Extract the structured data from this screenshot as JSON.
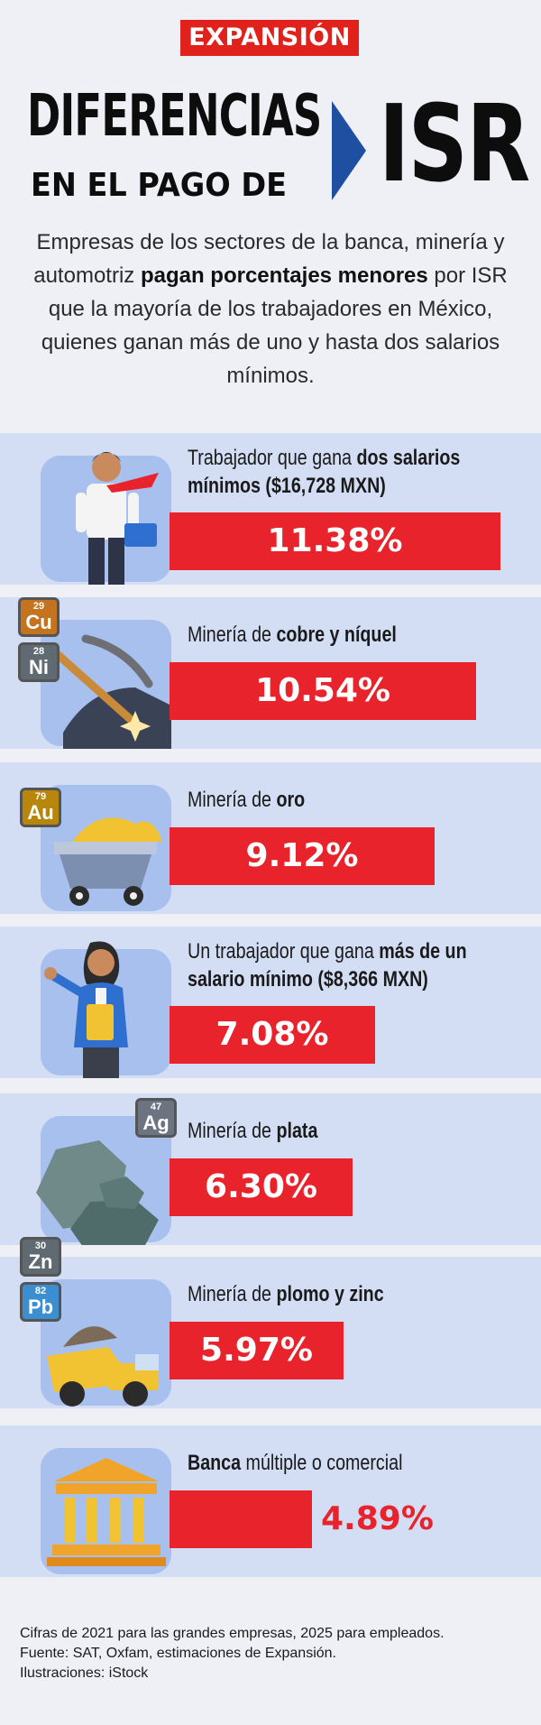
{
  "brand": "EXPANSIÓN",
  "title": {
    "line1": "DIFERENCIAS",
    "line2": "EN EL PAGO DE",
    "big": "ISR"
  },
  "intro": {
    "part1": "Empresas de los sectores de la banca, minería y automotriz ",
    "bold": "pagan porcentajes menores",
    "part2": " por ISR que la mayoría de los trabajadores en México, quienes ganan más de uno y hasta dos salarios mínimos."
  },
  "chart_data": {
    "type": "bar",
    "categories": [
      "Trabajador que gana dos salarios mínimos ($16,728 MXN)",
      "Minería de cobre y níquel",
      "Minería de oro",
      "Un trabajador que gana más de un salario mínimo ($8,366 MXN)",
      "Minería de plata",
      "Minería de plomo y zinc",
      "Banca múltiple o comercial"
    ],
    "values": [
      11.38,
      10.54,
      9.12,
      7.08,
      6.3,
      5.97,
      4.89
    ],
    "value_labels": [
      "11.38%",
      "10.54%",
      "9.12%",
      "7.08%",
      "6.30%",
      "5.97%",
      "4.89%"
    ],
    "xlim": [
      0,
      11.38
    ],
    "bar_color": "#e8232b"
  },
  "rows": [
    {
      "plain1": "Trabajador que gana ",
      "bold": "dos salarios mínimos ($16,728 MXN)",
      "plain2": "",
      "icon": "businessman-icon"
    },
    {
      "plain1": "Minería de ",
      "bold": "cobre y níquel",
      "plain2": "",
      "icon": "pickaxe-icon",
      "badges": [
        {
          "num": "29",
          "sym": "Cu"
        },
        {
          "num": "28",
          "sym": "Ni"
        }
      ]
    },
    {
      "plain1": "Minería de ",
      "bold": "oro",
      "plain2": "",
      "icon": "gold-cart-icon",
      "badges": [
        {
          "num": "79",
          "sym": "Au"
        }
      ]
    },
    {
      "plain1": "Un trabajador que gana ",
      "bold": "más de un salario mínimo ($8,366 MXN)",
      "plain2": "",
      "icon": "woman-worker-icon"
    },
    {
      "plain1": "Minería de ",
      "bold": "plata",
      "plain2": "",
      "icon": "rocks-icon",
      "badges": [
        {
          "num": "47",
          "sym": "Ag"
        }
      ]
    },
    {
      "plain1": "Minería de ",
      "bold": "plomo y zinc",
      "plain2": "",
      "icon": "dump-truck-icon",
      "badges": [
        {
          "num": "30",
          "sym": "Zn"
        },
        {
          "num": "82",
          "sym": "Pb"
        }
      ]
    },
    {
      "plain1": "",
      "bold": "Banca",
      "plain2": " múltiple o comercial",
      "icon": "bank-icon"
    }
  ],
  "footer": {
    "line1": "Cifras de 2021 para las grandes empresas, 2025 para empleados.",
    "line2": "Fuente: SAT, Oxfam, estimaciones de Expansión.",
    "line3": "Ilustraciones: iStock"
  }
}
